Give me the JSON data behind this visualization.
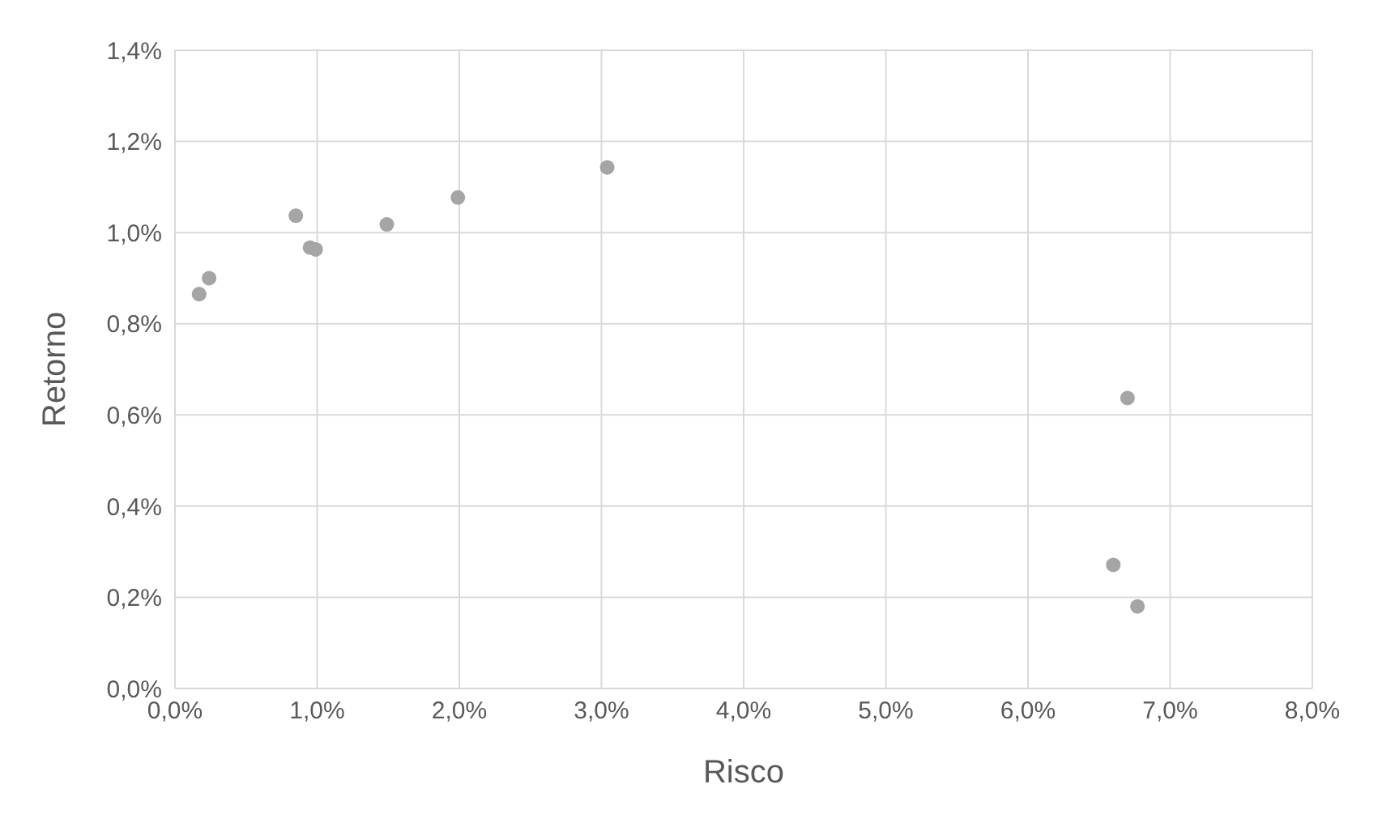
{
  "chart_data": {
    "type": "scatter",
    "xlabel": "Risco",
    "ylabel": "Retorno",
    "x": [
      0.17,
      0.24,
      0.85,
      0.95,
      0.99,
      1.49,
      1.99,
      3.04,
      6.7,
      6.6,
      6.77
    ],
    "values": [
      0.865,
      0.9,
      1.037,
      0.967,
      0.963,
      1.018,
      1.077,
      1.143,
      0.637,
      0.271,
      0.18
    ],
    "color": "#a5a5a5",
    "marker": "circle",
    "grid": true,
    "xlim": [
      0,
      8
    ],
    "xticks": [
      {
        "value": 0,
        "label": "0,0%"
      },
      {
        "value": 1,
        "label": "1,0%"
      },
      {
        "value": 2,
        "label": "2,0%"
      },
      {
        "value": 3,
        "label": "3,0%"
      },
      {
        "value": 4,
        "label": "4,0%"
      },
      {
        "value": 5,
        "label": "5,0%"
      },
      {
        "value": 6,
        "label": "6,0%"
      },
      {
        "value": 7,
        "label": "7,0%"
      },
      {
        "value": 8,
        "label": "8,0%"
      }
    ],
    "ylim": [
      0,
      1.4
    ],
    "yticks": [
      {
        "value": 0,
        "label": "0,0%"
      },
      {
        "value": 0.2,
        "label": "0,2%"
      },
      {
        "value": 0.4,
        "label": "0,4%"
      },
      {
        "value": 0.6,
        "label": "0,6%"
      },
      {
        "value": 0.8,
        "label": "0,8%"
      },
      {
        "value": 1.0,
        "label": "1,0%"
      },
      {
        "value": 1.2,
        "label": "1,2%"
      },
      {
        "value": 1.4,
        "label": "1,4%"
      }
    ]
  }
}
